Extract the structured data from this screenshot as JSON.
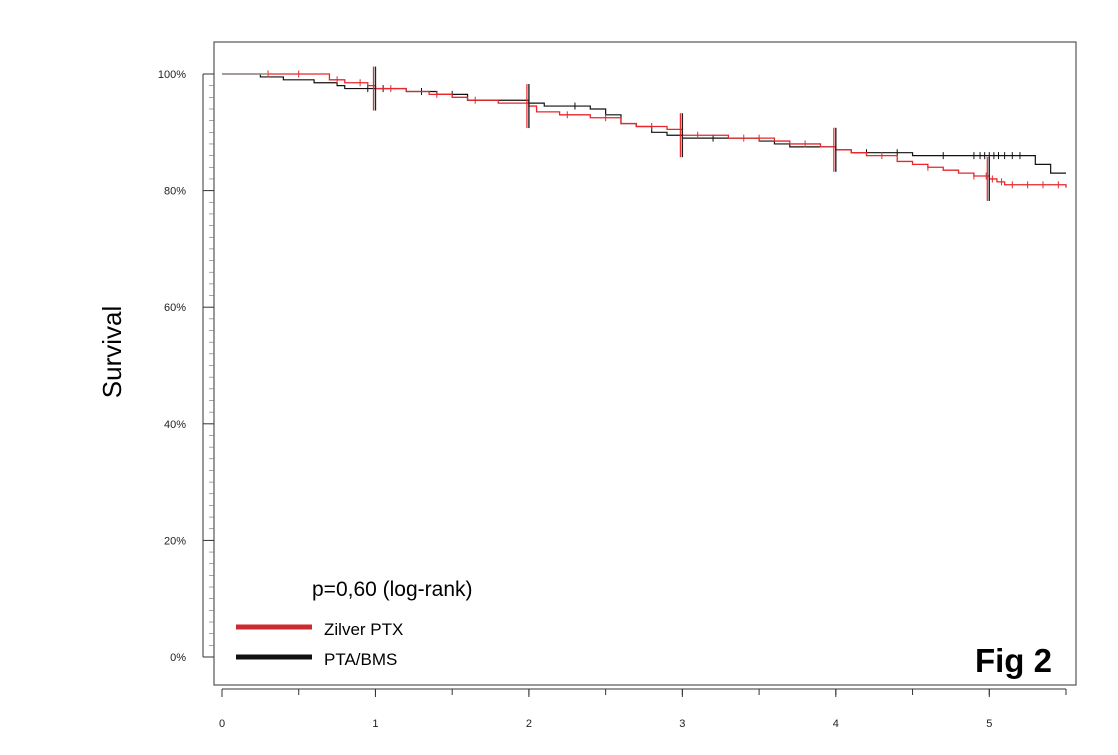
{
  "chart_data": {
    "type": "line",
    "title": "",
    "xlabel": "",
    "ylabel": "Survival",
    "xlim": [
      0,
      5.5
    ],
    "ylim": [
      0,
      1.0
    ],
    "x_ticks": [
      0,
      1,
      2,
      3,
      4,
      5
    ],
    "x_tick_labels": [
      "0",
      "1",
      "2",
      "3",
      "4",
      "5"
    ],
    "y_ticks": [
      0,
      0.2,
      0.4,
      0.6,
      0.8,
      1.0
    ],
    "y_tick_labels": [
      "0%",
      "20%",
      "40%",
      "60%",
      "80%",
      "100%"
    ],
    "grid": false,
    "legend_position": "bottom-left",
    "annotation": "p=0,60 (log-rank)",
    "figure_label": "Fig 2",
    "series": [
      {
        "name": "Zilver PTX",
        "color": "#e8262b",
        "legend_color": "#cc2a2e",
        "x": [
          0,
          0.3,
          0.65,
          0.7,
          0.8,
          0.95,
          1.0,
          1.2,
          1.35,
          1.5,
          1.6,
          1.8,
          2.0,
          2.05,
          2.2,
          2.4,
          2.6,
          2.7,
          2.9,
          3.0,
          3.3,
          3.6,
          3.7,
          3.9,
          4.0,
          4.1,
          4.2,
          4.4,
          4.5,
          4.6,
          4.7,
          4.8,
          4.9,
          5.0,
          5.05,
          5.1,
          5.2,
          5.3,
          5.4,
          5.5
        ],
        "y": [
          1.0,
          1.0,
          1.0,
          0.99,
          0.985,
          0.98,
          0.975,
          0.97,
          0.965,
          0.96,
          0.955,
          0.95,
          0.945,
          0.935,
          0.93,
          0.925,
          0.915,
          0.91,
          0.905,
          0.895,
          0.89,
          0.885,
          0.88,
          0.875,
          0.87,
          0.865,
          0.86,
          0.85,
          0.845,
          0.84,
          0.835,
          0.83,
          0.825,
          0.82,
          0.815,
          0.81,
          0.81,
          0.81,
          0.81,
          0.805
        ],
        "censor_x": [
          0.3,
          0.5,
          0.75,
          0.9,
          1.1,
          1.4,
          1.65,
          2.25,
          2.5,
          2.8,
          3.1,
          3.4,
          3.5,
          3.8,
          4.3,
          4.6,
          4.9,
          4.98,
          5.02,
          5.08,
          5.15,
          5.25,
          5.35,
          5.45
        ]
      },
      {
        "name": "PTA/BMS",
        "color": "#111111",
        "legend_color": "#111111",
        "x": [
          0,
          0.25,
          0.4,
          0.6,
          0.75,
          0.8,
          1.0,
          1.2,
          1.4,
          1.6,
          2.0,
          2.1,
          2.4,
          2.5,
          2.6,
          2.7,
          2.8,
          2.9,
          3.0,
          3.4,
          3.5,
          3.6,
          3.7,
          3.9,
          4.0,
          4.1,
          4.3,
          4.5,
          4.8,
          5.2,
          5.3,
          5.4,
          5.5
        ],
        "y": [
          1.0,
          0.995,
          0.99,
          0.985,
          0.98,
          0.975,
          0.975,
          0.97,
          0.965,
          0.955,
          0.95,
          0.945,
          0.94,
          0.93,
          0.915,
          0.91,
          0.9,
          0.895,
          0.89,
          0.89,
          0.885,
          0.88,
          0.875,
          0.875,
          0.87,
          0.865,
          0.865,
          0.86,
          0.86,
          0.86,
          0.845,
          0.83,
          0.83
        ],
        "censor_x": [
          0.95,
          1.05,
          1.3,
          1.5,
          2.3,
          3.2,
          4.2,
          4.4,
          4.7,
          4.9,
          4.94,
          4.97,
          5.0,
          5.03,
          5.06,
          5.1,
          5.15,
          5.2
        ]
      }
    ],
    "at_risk_markers": [
      {
        "x": 1.0,
        "series": 0,
        "color": "#8a1a1a"
      },
      {
        "x": 2.0,
        "series": 0,
        "color": "#7a1a1a"
      },
      {
        "x": 3.0,
        "series": 0,
        "color": "#7a1a1a"
      },
      {
        "x": 4.0,
        "series": 0,
        "color": "#7a1a1a"
      },
      {
        "x": 5.0,
        "series": 0,
        "color": "#7a1a1a"
      }
    ]
  }
}
